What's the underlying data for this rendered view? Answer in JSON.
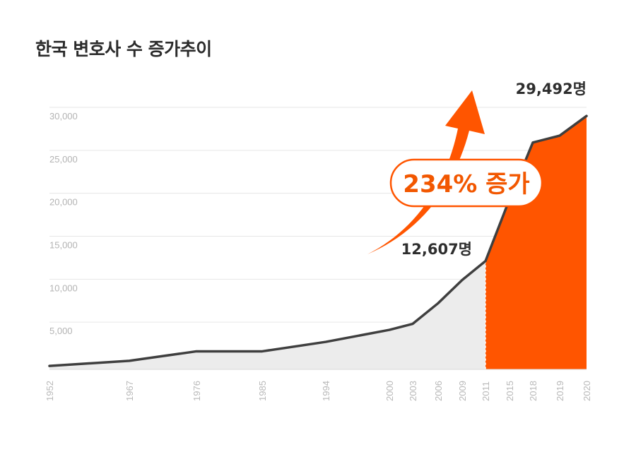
{
  "title": "한국 변호사 수 증가추이",
  "colors": {
    "accent": "#ff5500",
    "line": "#3f3f3f",
    "area_before": "#ececec",
    "grid": "#e6e6e6",
    "tick_text": "#b3b3b3"
  },
  "chart_data": {
    "type": "area",
    "x_categories": [
      "1952",
      "1967",
      "1976",
      "1985",
      "1994",
      "2000",
      "2003",
      "2006",
      "2009",
      "2011",
      "2015",
      "2018",
      "2019",
      "2020"
    ],
    "y_ticks": [
      "5,000",
      "10,000",
      "15,000",
      "20,000",
      "25,000",
      "30,000"
    ],
    "ylim": [
      0,
      30000
    ],
    "grid": true,
    "series": [
      {
        "values": [
          {
            "x": "1952",
            "y": 400
          },
          {
            "x": "1967",
            "y": 1000
          },
          {
            "x": "1976",
            "y": 2100
          },
          {
            "x": "1985",
            "y": 2100
          },
          {
            "x": "1994",
            "y": 3200
          },
          {
            "x": "2000",
            "y": 4600
          },
          {
            "x": "2003",
            "y": 5300
          },
          {
            "x": "2006",
            "y": 7700
          },
          {
            "x": "2009",
            "y": 10400
          },
          {
            "x": "2011",
            "y": 12607
          },
          {
            "x": "2015",
            "y": 19800
          },
          {
            "x": "2018",
            "y": 26400
          },
          {
            "x": "2019",
            "y": 27200
          },
          {
            "x": "2020",
            "y": 29492
          }
        ]
      }
    ],
    "highlight_from": "2011",
    "annotations": {
      "label_2011": "12,607명",
      "label_2020": "29,492명",
      "growth": "234% 증가"
    }
  }
}
